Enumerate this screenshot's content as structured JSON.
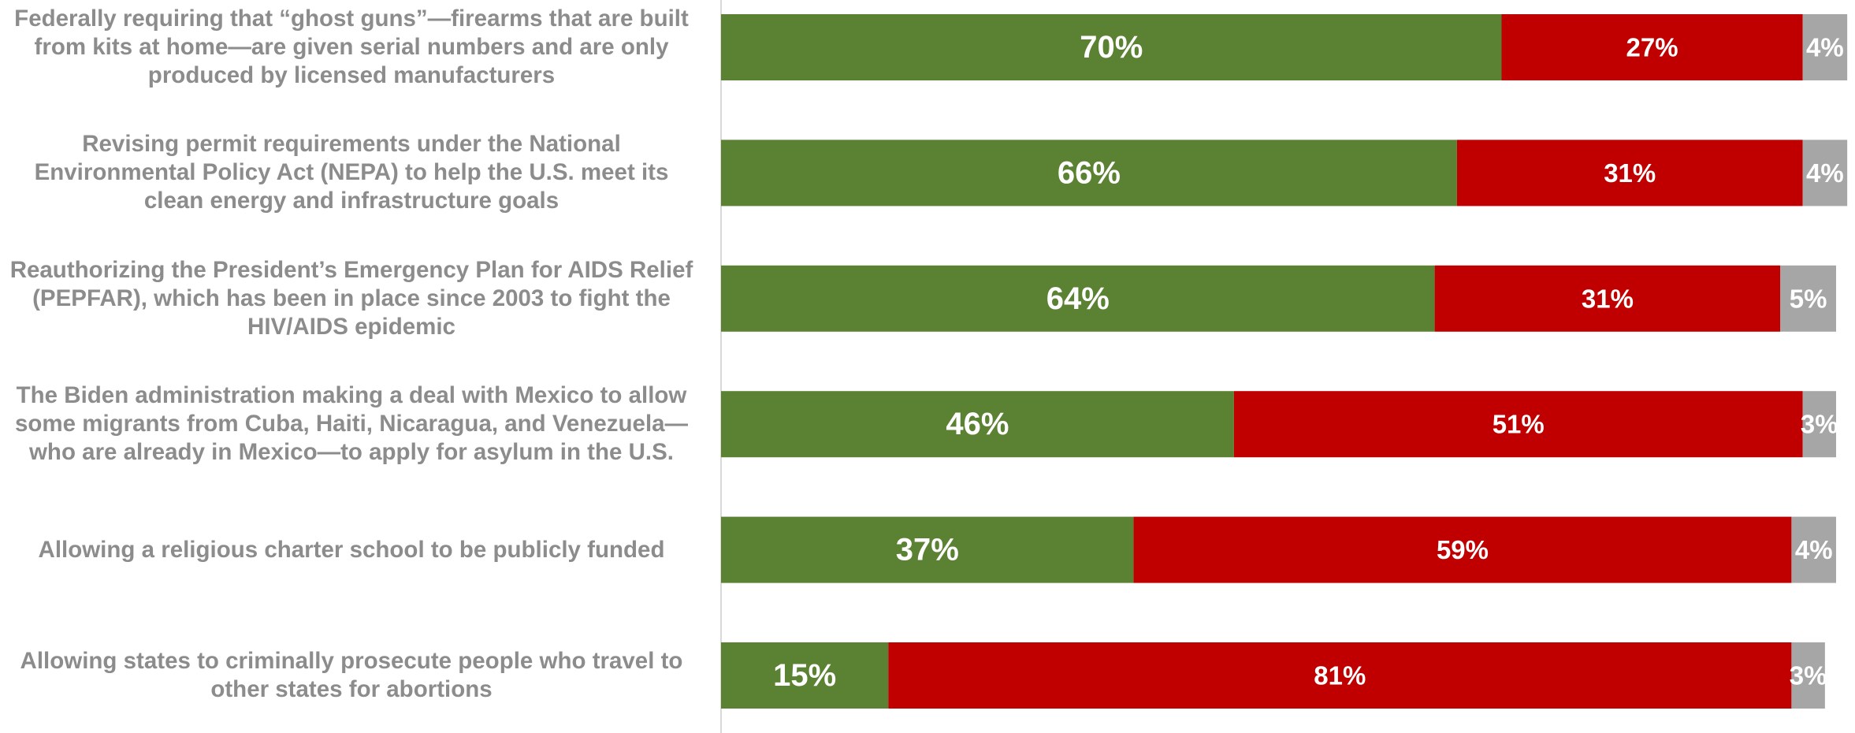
{
  "chart_data": {
    "type": "stacked-bar-horizontal",
    "categories": [
      "Federally requiring that “ghost guns”—firearms that are built from kits at home—are given serial numbers and are only produced by licensed manufacturers",
      "Revising permit requirements under the National Environmental Policy Act (NEPA) to help the U.S. meet its clean energy and infrastructure goals",
      "Reauthorizing the President’s Emergency Plan for AIDS Relief (PEPFAR), which has been in place since 2003 to fight the HIV/AIDS epidemic",
      "The Biden administration making a deal with Mexico to allow some migrants from Cuba, Haiti, Nicaragua, and Venezuela—who are already in Mexico—to apply for asylum in the U.S.",
      "Allowing a religious charter school to be publicly funded",
      "Allowing states to criminally prosecute people who travel to other states for abortions"
    ],
    "series": [
      {
        "color": "#5b8232",
        "values": [
          70,
          66,
          64,
          46,
          37,
          15
        ],
        "value_labels": [
          "70%",
          "66%",
          "64%",
          "46%",
          "37%",
          "15%"
        ]
      },
      {
        "color": "#c00000",
        "values": [
          27,
          31,
          31,
          51,
          59,
          81
        ],
        "value_labels": [
          "27%",
          "31%",
          "31%",
          "51%",
          "59%",
          "81%"
        ]
      },
      {
        "color": "#a6a6a6",
        "values": [
          4,
          4,
          5,
          3,
          4,
          3
        ],
        "value_labels": [
          "4%",
          "4%",
          "5%",
          "3%",
          "4%",
          "3%"
        ]
      }
    ],
    "xlim": [
      0,
      100
    ]
  }
}
